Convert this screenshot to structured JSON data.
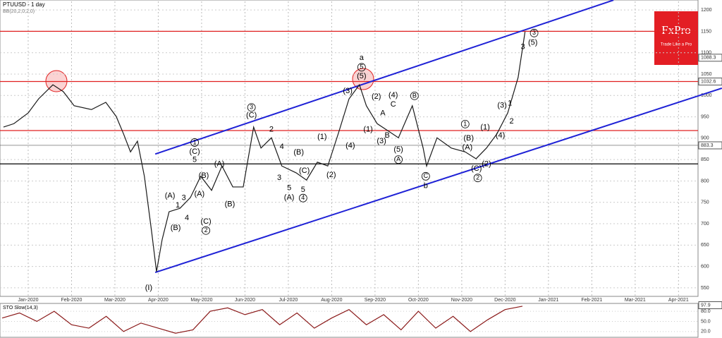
{
  "chart_data": [
    {
      "type": "line",
      "title": "PTUUSD - 1 day",
      "subtitle": "BB(20,2,0,2,0)",
      "color": "#1a1a1a",
      "x": [
        -0.57,
        -0.33,
        0,
        0.24,
        0.57,
        0.81,
        1.06,
        1.46,
        1.79,
        2.03,
        2.2,
        2.36,
        2.52,
        2.68,
        2.85,
        2.96,
        3.09,
        3.25,
        3.5,
        3.74,
        3.98,
        4.23,
        4.47,
        4.72,
        4.96,
        5.2,
        5.37,
        5.61,
        5.85,
        6.18,
        6.42,
        6.67,
        6.91,
        7.15,
        7.4,
        7.64,
        7.8,
        8.05,
        8.29,
        8.54,
        8.86,
        9.11,
        9.19,
        9.43,
        9.76,
        10.08,
        10.33,
        10.57,
        10.81,
        11.06,
        11.3,
        11.46
      ],
      "values": [
        926,
        934,
        959,
        992,
        1025,
        1009,
        976,
        967,
        984,
        951,
        910,
        868,
        893,
        811,
        679,
        588,
        663,
        728,
        736,
        761,
        811,
        778,
        835,
        786,
        786,
        926,
        877,
        901,
        835,
        819,
        802,
        844,
        835,
        910,
        992,
        1025,
        976,
        934,
        918,
        901,
        976,
        877,
        835,
        901,
        877,
        868,
        852,
        877,
        910,
        959,
        1042,
        1149
      ],
      "xlim": [
        -0.65,
        15.45
      ],
      "xticks": [
        {
          "value": 0,
          "label": "Jan-2020"
        },
        {
          "value": 1,
          "label": "Feb-2020"
        },
        {
          "value": 2,
          "label": "Mar-2020"
        },
        {
          "value": 3,
          "label": "Apr-2020"
        },
        {
          "value": 4,
          "label": "May-2020"
        },
        {
          "value": 5,
          "label": "Jun-2020"
        },
        {
          "value": 6,
          "label": "Jul-2020"
        },
        {
          "value": 7,
          "label": "Aug-2020"
        },
        {
          "value": 8,
          "label": "Sep-2020"
        },
        {
          "value": 9,
          "label": "Oct-2020"
        },
        {
          "value": 10,
          "label": "Nov-2020"
        },
        {
          "value": 11,
          "label": "Dec-2020"
        },
        {
          "value": 12,
          "label": "Jan-2021"
        },
        {
          "value": 13,
          "label": "Feb-2021"
        },
        {
          "value": 14,
          "label": "Mar-2021"
        },
        {
          "value": 15,
          "label": "Apr-2021"
        }
      ],
      "ylim": [
        535,
        1220
      ],
      "yticks": [
        550,
        600,
        650,
        700,
        750,
        800,
        850,
        900,
        950,
        1000,
        1050,
        1100,
        1150,
        1200
      ],
      "grid": true,
      "hlines": [
        {
          "value": 1150,
          "color": "#e02020"
        },
        {
          "value": 1032.6,
          "color": "#e02020",
          "boxed": true
        },
        {
          "value": 918,
          "color": "#e02020"
        },
        {
          "value": 883.3,
          "color": "#555555",
          "boxed": true
        },
        {
          "value": 840,
          "color": "#000000"
        }
      ],
      "price_labels": [
        1088.3
      ],
      "trendlines": [
        {
          "color": "#1f22d6",
          "points": [
            [
              2.93,
              863
            ],
            [
              13.5,
              1223
            ]
          ]
        },
        {
          "color": "#1f22d6",
          "points": [
            [
              2.93,
              586
            ],
            [
              16,
              1017
            ]
          ]
        }
      ],
      "annotations": [
        {
          "text": "(I)",
          "x": 2.78,
          "y": 550
        },
        {
          "text": "(A)",
          "x": 3.27,
          "y": 765
        },
        {
          "text": "(B)",
          "x": 3.4,
          "y": 690
        },
        {
          "text": "1",
          "x": 3.45,
          "y": 743
        },
        {
          "text": "3",
          "x": 3.59,
          "y": 760
        },
        {
          "text": "4",
          "x": 3.66,
          "y": 713
        },
        {
          "text": "5",
          "x": 3.84,
          "y": 849
        },
        {
          "text": "(C)",
          "x": 3.84,
          "y": 868
        },
        {
          "text": "1",
          "x": 3.84,
          "y": 890,
          "circled": true
        },
        {
          "text": "(A)",
          "x": 3.95,
          "y": 769
        },
        {
          "text": "(B)",
          "x": 4.05,
          "y": 812
        },
        {
          "text": "(C)",
          "x": 4.1,
          "y": 705
        },
        {
          "text": "2",
          "x": 4.1,
          "y": 684,
          "circled": true
        },
        {
          "text": "(A)",
          "x": 4.41,
          "y": 839
        },
        {
          "text": "(B)",
          "x": 4.65,
          "y": 745
        },
        {
          "text": "3",
          "x": 5.15,
          "y": 972,
          "circled": true
        },
        {
          "text": "(C)",
          "x": 5.15,
          "y": 953
        },
        {
          "text": "2",
          "x": 5.61,
          "y": 920
        },
        {
          "text": "4",
          "x": 5.85,
          "y": 880
        },
        {
          "text": "3",
          "x": 5.79,
          "y": 807
        },
        {
          "text": "5",
          "x": 6.02,
          "y": 783
        },
        {
          "text": "(A)",
          "x": 6.02,
          "y": 761
        },
        {
          "text": "(B)",
          "x": 6.24,
          "y": 867
        },
        {
          "text": "5",
          "x": 6.34,
          "y": 779
        },
        {
          "text": "4",
          "x": 6.34,
          "y": 760,
          "circled": true
        },
        {
          "text": "(C)",
          "x": 6.37,
          "y": 824
        },
        {
          "text": "(1)",
          "x": 6.78,
          "y": 903
        },
        {
          "text": "(2)",
          "x": 6.99,
          "y": 814
        },
        {
          "text": "(4)",
          "x": 7.43,
          "y": 882
        },
        {
          "text": "(3)",
          "x": 7.37,
          "y": 1010
        },
        {
          "text": "a",
          "x": 7.69,
          "y": 1088
        },
        {
          "text": "5",
          "x": 7.69,
          "y": 1066,
          "circled": true
        },
        {
          "text": "(5)",
          "x": 7.69,
          "y": 1045
        },
        {
          "text": "(1)",
          "x": 7.84,
          "y": 920
        },
        {
          "text": "(2)",
          "x": 8.03,
          "y": 997
        },
        {
          "text": "(3)",
          "x": 8.15,
          "y": 893
        },
        {
          "text": "B",
          "x": 8.28,
          "y": 906
        },
        {
          "text": "A",
          "x": 8.18,
          "y": 958
        },
        {
          "text": "(4)",
          "x": 8.42,
          "y": 1000
        },
        {
          "text": "C",
          "x": 8.42,
          "y": 979
        },
        {
          "text": "(5)",
          "x": 8.54,
          "y": 873
        },
        {
          "text": "A",
          "x": 8.54,
          "y": 850,
          "circled": true
        },
        {
          "text": "B",
          "x": 8.91,
          "y": 999,
          "circled": true
        },
        {
          "text": "C",
          "x": 9.17,
          "y": 811,
          "circled": true
        },
        {
          "text": "b",
          "x": 9.17,
          "y": 788
        },
        {
          "text": "1",
          "x": 10.08,
          "y": 933,
          "circled": true
        },
        {
          "text": "(B)",
          "x": 10.16,
          "y": 900
        },
        {
          "text": "(A)",
          "x": 10.13,
          "y": 878
        },
        {
          "text": "(C)",
          "x": 10.34,
          "y": 829
        },
        {
          "text": "2",
          "x": 10.37,
          "y": 807,
          "circled": true
        },
        {
          "text": "(1)",
          "x": 10.54,
          "y": 925
        },
        {
          "text": "(2)",
          "x": 10.57,
          "y": 839
        },
        {
          "text": "(4)",
          "x": 10.89,
          "y": 906
        },
        {
          "text": "(3)",
          "x": 10.93,
          "y": 976
        },
        {
          "text": "2",
          "x": 11.15,
          "y": 939
        },
        {
          "text": "1",
          "x": 11.11,
          "y": 981
        },
        {
          "text": "3",
          "x": 11.41,
          "y": 1113
        },
        {
          "text": "(5)",
          "x": 11.64,
          "y": 1123
        },
        {
          "text": "3",
          "x": 11.67,
          "y": 1146,
          "circled": true
        }
      ]
    },
    {
      "type": "line",
      "title": "STO Slow(14,3)",
      "color": "#8b1a1a",
      "x": [
        -0.6,
        -0.2,
        0.2,
        0.6,
        1,
        1.4,
        1.8,
        2.2,
        2.6,
        3,
        3.4,
        3.8,
        4.2,
        4.6,
        5,
        5.4,
        5.8,
        6.2,
        6.6,
        7,
        7.4,
        7.8,
        8.2,
        8.6,
        9,
        9.4,
        9.8,
        10.2,
        10.6,
        11,
        11.4
      ],
      "values": [
        60,
        75,
        50,
        80,
        40,
        30,
        65,
        20,
        45,
        30,
        15,
        25,
        80,
        90,
        70,
        85,
        40,
        75,
        30,
        60,
        85,
        40,
        70,
        25,
        80,
        30,
        65,
        20,
        55,
        85,
        95
      ],
      "xlim": [
        -0.65,
        15.45
      ],
      "ylim": [
        5,
        99
      ],
      "yticks": [
        {
          "value": 20,
          "label": "20.0"
        },
        {
          "value": 50,
          "label": "50.0"
        },
        {
          "value": 80,
          "label": "80.0"
        }
      ],
      "current": 97.9
    }
  ],
  "logo": {
    "name": "FxPro",
    "tagline": "Trade Like a Pro"
  }
}
